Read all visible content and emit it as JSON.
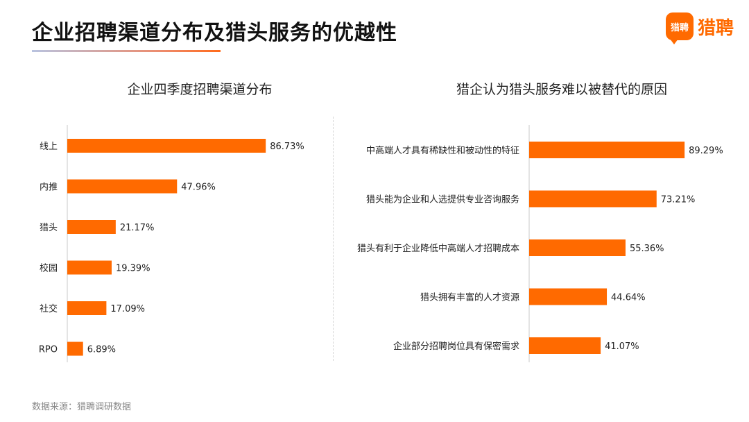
{
  "header": {
    "title": "企业招聘渠道分布及猎头服务的优越性",
    "brand_logo_text": "猎聘",
    "brand_name": "猎聘",
    "brand_color": "#ff6a00"
  },
  "footer": {
    "source": "数据来源：猎聘调研数据"
  },
  "chart_data": [
    {
      "type": "bar",
      "orientation": "horizontal",
      "title": "企业四季度招聘渠道分布",
      "categories": [
        "线上",
        "内推",
        "猎头",
        "校园",
        "社交",
        "RPO"
      ],
      "values": [
        86.73,
        47.96,
        21.17,
        19.39,
        17.09,
        6.89
      ],
      "value_labels": [
        "86.73%",
        "47.96%",
        "21.17%",
        "19.39%",
        "17.09%",
        "6.89%"
      ],
      "xlim": [
        0,
        100
      ],
      "color": "#ff6a00",
      "grid": false
    },
    {
      "type": "bar",
      "orientation": "horizontal",
      "title": "猎企认为猎头服务难以被替代的原因",
      "categories": [
        "中高端人才具有稀缺性和被动性的特征",
        "猎头能为企业和人选提供专业咨询服务",
        "猎头有利于企业降低中高端人才招聘成本",
        "猎头拥有丰富的人才资源",
        "企业部分招聘岗位具有保密需求"
      ],
      "values": [
        89.29,
        73.21,
        55.36,
        44.64,
        41.07
      ],
      "value_labels": [
        "89.29%",
        "73.21%",
        "55.36%",
        "44.64%",
        "41.07%"
      ],
      "xlim": [
        0,
        100
      ],
      "color": "#ff6a00",
      "grid": false
    }
  ]
}
